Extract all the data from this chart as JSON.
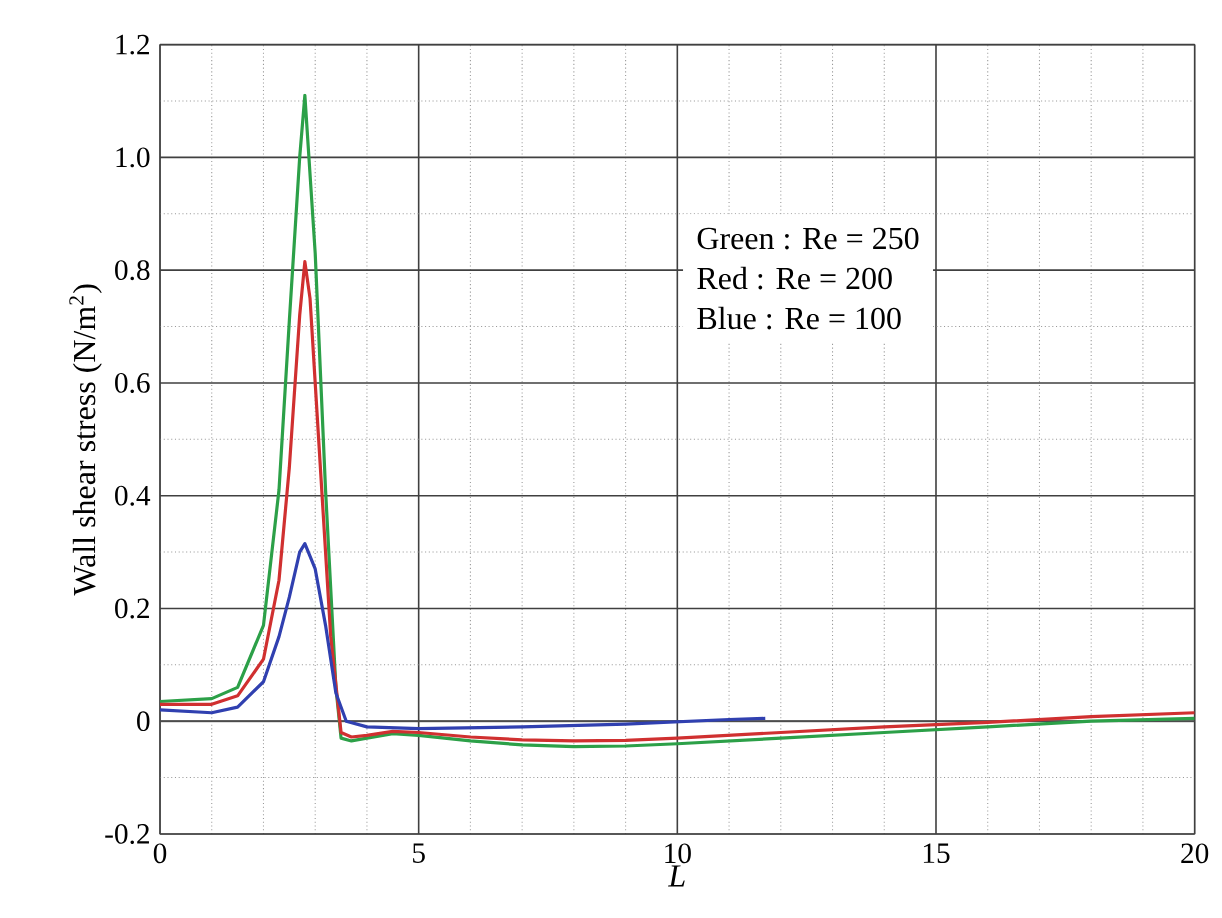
{
  "chart_data": {
    "type": "line",
    "xlabel": "L",
    "ylabel": "Wall shear stress (N/m$^{2}$)",
    "xlim": [
      0,
      20
    ],
    "ylim": [
      -0.2,
      1.2
    ],
    "xticks": [
      0,
      5,
      10,
      15,
      20
    ],
    "yticks": [
      {
        "value": -0.2,
        "label": "-0.2"
      },
      0,
      0.2,
      0.4,
      0.6,
      0.8,
      {
        "value": 1.0,
        "label": "1.0"
      },
      1.2
    ],
    "grid": true,
    "annotations": [
      "Green : Re = 250",
      "Red    : Re = 200",
      "Blue   : Re = 100"
    ],
    "series": [
      {
        "color": "#2ca048",
        "x": [
          0,
          1,
          1.5,
          2,
          2.3,
          2.5,
          2.7,
          2.8,
          3.0,
          3.2,
          3.4,
          3.5,
          3.7,
          4,
          4.5,
          5,
          6,
          7,
          8,
          9,
          10,
          12,
          14,
          16,
          18,
          20
        ],
        "values": [
          0.035,
          0.04,
          0.06,
          0.17,
          0.41,
          0.71,
          1.0,
          1.11,
          0.83,
          0.41,
          0.06,
          -0.03,
          -0.035,
          -0.03,
          -0.022,
          -0.025,
          -0.035,
          -0.042,
          -0.045,
          -0.044,
          -0.04,
          -0.03,
          -0.02,
          -0.01,
          0.0,
          0.005
        ]
      },
      {
        "color": "#d03030",
        "x": [
          0,
          1,
          1.5,
          2,
          2.3,
          2.5,
          2.7,
          2.8,
          2.9,
          3.1,
          3.3,
          3.5,
          3.7,
          4,
          4.5,
          5,
          6,
          7,
          8,
          9,
          10,
          12,
          14,
          16,
          18,
          20
        ],
        "values": [
          0.03,
          0.03,
          0.045,
          0.11,
          0.25,
          0.45,
          0.72,
          0.815,
          0.75,
          0.45,
          0.15,
          -0.02,
          -0.028,
          -0.025,
          -0.018,
          -0.02,
          -0.028,
          -0.033,
          -0.035,
          -0.034,
          -0.03,
          -0.02,
          -0.01,
          -0.002,
          0.008,
          0.015
        ]
      },
      {
        "color": "#3040b0",
        "x": [
          0,
          1,
          1.5,
          2,
          2.3,
          2.5,
          2.7,
          2.8,
          3.0,
          3.2,
          3.4,
          3.6,
          4,
          5,
          7,
          9,
          11,
          11.7
        ],
        "values": [
          0.02,
          0.015,
          0.025,
          0.07,
          0.15,
          0.22,
          0.3,
          0.315,
          0.27,
          0.17,
          0.05,
          0.0,
          -0.01,
          -0.013,
          -0.01,
          -0.005,
          0.003,
          0.005
        ]
      }
    ]
  }
}
